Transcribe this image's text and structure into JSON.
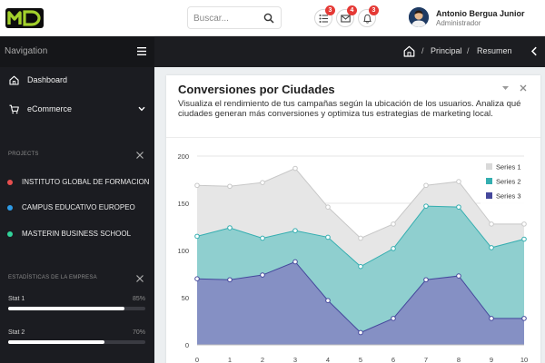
{
  "brand": {
    "logo_text": "MD",
    "logo_color": "#a3d12c"
  },
  "header": {
    "search_placeholder": "Buscar...",
    "notifications": [
      {
        "name": "tasks-icon",
        "badge": "3"
      },
      {
        "name": "mail-icon",
        "badge": "4"
      },
      {
        "name": "bell-icon",
        "badge": "3"
      }
    ],
    "user": {
      "name": "Antonio Bergua Junior",
      "role": "Administrador"
    }
  },
  "sidebar": {
    "title": "Navigation",
    "items": [
      {
        "label": "Dashboard",
        "icon": "home-icon"
      },
      {
        "label": "eCommerce",
        "icon": "cart-icon"
      }
    ],
    "projects_title": "PROJECTS",
    "projects": [
      {
        "label": "INSTITUTO GLOBAL DE FORMACION",
        "color": "#e84f4f"
      },
      {
        "label": "CAMPUS EDUCATIVO EUROPEO",
        "color": "#2e9be6"
      },
      {
        "label": "MASTERIN BUSINESS SCHOOL",
        "color": "#31d39a"
      }
    ],
    "stats_title": "ESTADÍSTICAS DE LA EMPRESA",
    "stats": [
      {
        "label": "Stat 1",
        "value": 85,
        "display": "85%"
      },
      {
        "label": "Stat 2",
        "value": 70,
        "display": "70%"
      }
    ]
  },
  "breadcrumb": {
    "items": [
      "Principal",
      "Resumen"
    ]
  },
  "card": {
    "title": "Conversiones por Ciudades",
    "description": "Visualiza el rendimiento de tus campañas según la ubicación de los usuarios. Analiza qué ciudades generan más conversiones y optimiza tus estrategias de marketing local."
  },
  "chart_data": {
    "type": "area",
    "x": [
      0,
      1,
      2,
      3,
      4,
      5,
      6,
      7,
      8,
      9,
      10
    ],
    "ylim": [
      0,
      200
    ],
    "yticks": [
      0,
      50,
      100,
      150,
      200
    ],
    "legend_position": "top-right",
    "series": [
      {
        "name": "Series 1",
        "values": [
          169,
          168,
          172,
          187,
          146,
          113,
          128,
          169,
          173,
          128,
          128
        ],
        "fill": "#e6e6e6",
        "stroke": "#c8c8c8"
      },
      {
        "name": "Series 2",
        "values": [
          115,
          124,
          113,
          121,
          114,
          83,
          102,
          147,
          146,
          103,
          112
        ],
        "fill": "#8fcfcf",
        "stroke": "#34aeb0"
      },
      {
        "name": "Series 3",
        "values": [
          70,
          69,
          74,
          88,
          47,
          13,
          28,
          69,
          73,
          28,
          28
        ],
        "fill": "#8590c4",
        "stroke": "#45489c"
      }
    ]
  }
}
